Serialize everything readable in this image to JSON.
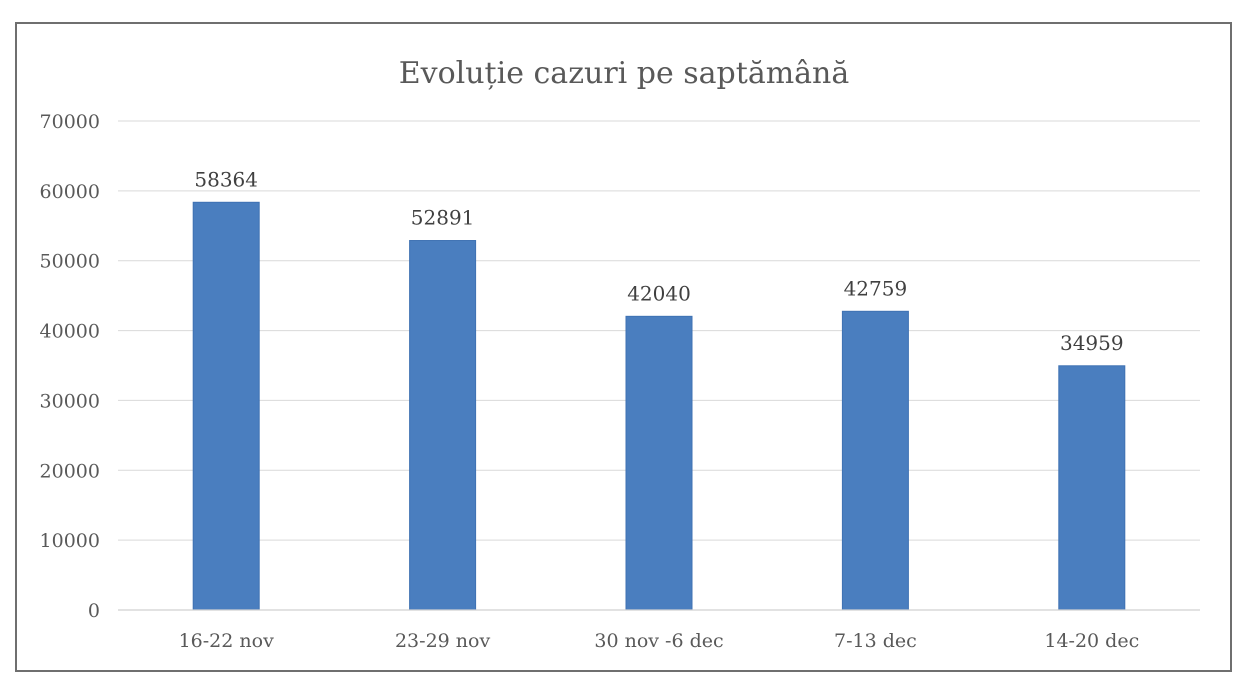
{
  "chart_data": {
    "type": "bar",
    "title": "Evoluție cazuri pe saptămână",
    "categories": [
      "16-22 nov",
      "23-29 nov",
      "30 nov -6 dec",
      "7-13 dec",
      "14-20 dec"
    ],
    "values": [
      58364,
      52891,
      42040,
      42759,
      34959
    ],
    "data_labels": [
      "58364",
      "52891",
      "42040",
      "42759",
      "34959"
    ],
    "ylim": [
      0,
      70000
    ],
    "yticks": [
      0,
      10000,
      20000,
      30000,
      40000,
      50000,
      60000,
      70000
    ],
    "ytick_labels": [
      "0",
      "10000",
      "20000",
      "30000",
      "40000",
      "50000",
      "60000",
      "70000"
    ],
    "grid": true,
    "legend": "none",
    "bar_color": "#4a7ebf"
  }
}
